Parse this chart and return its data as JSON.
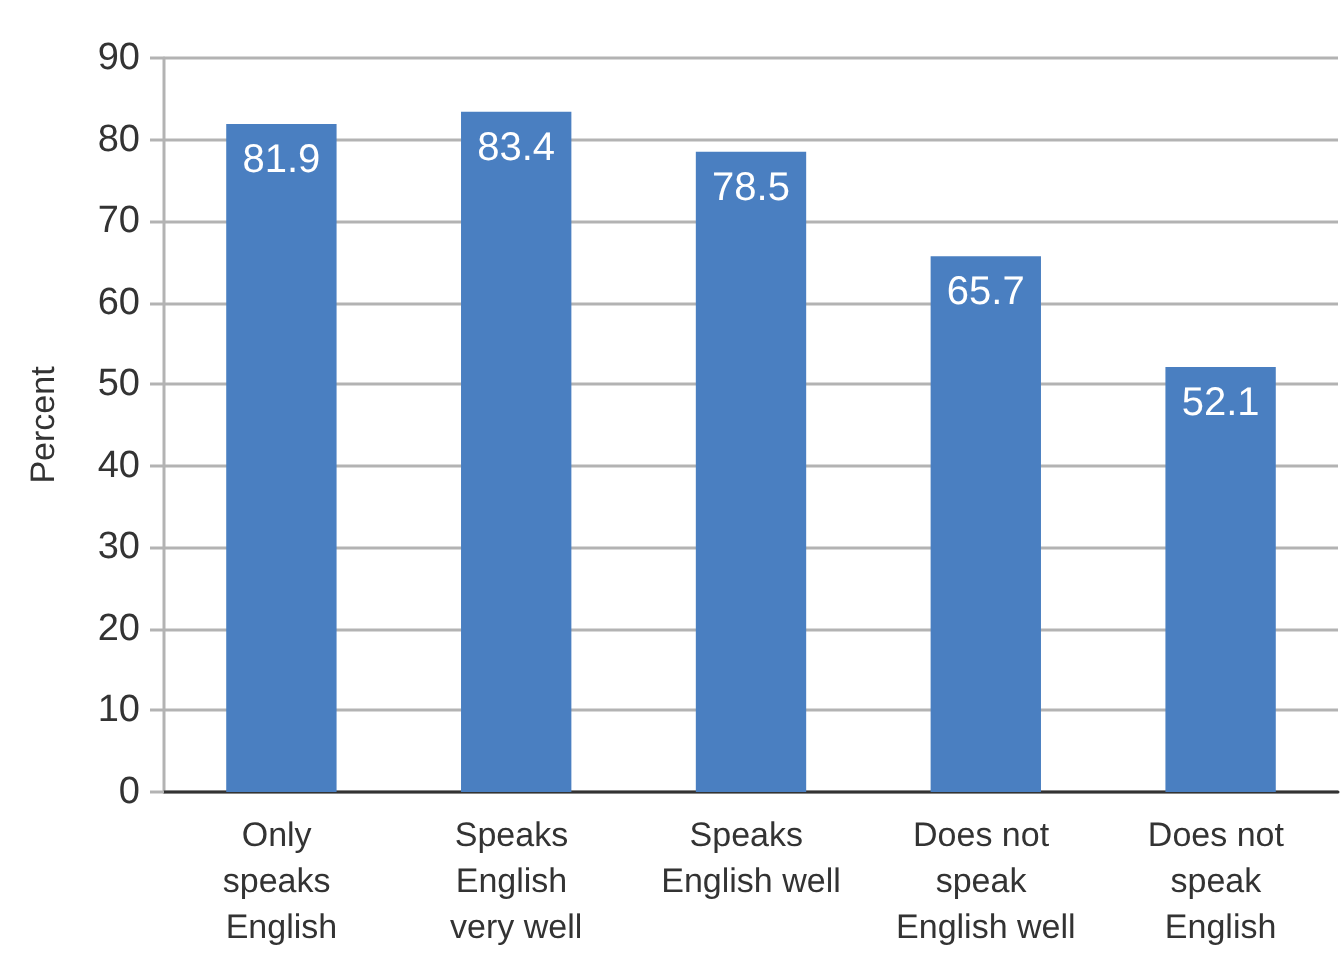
{
  "chart_data": {
    "type": "bar",
    "ylabel": "Percent",
    "categories": [
      "Only speaks English",
      "Speaks English very well",
      "Speaks English well",
      "Does not speak English well",
      "Does not speak English"
    ],
    "values": [
      81.9,
      83.4,
      78.5,
      65.7,
      52.1
    ],
    "color": "#4a7fc1",
    "ylim": [
      0,
      90
    ],
    "yticks": [
      0,
      10,
      20,
      30,
      40,
      50,
      60,
      70,
      80,
      90
    ],
    "grid": "y",
    "data_labels": true
  }
}
